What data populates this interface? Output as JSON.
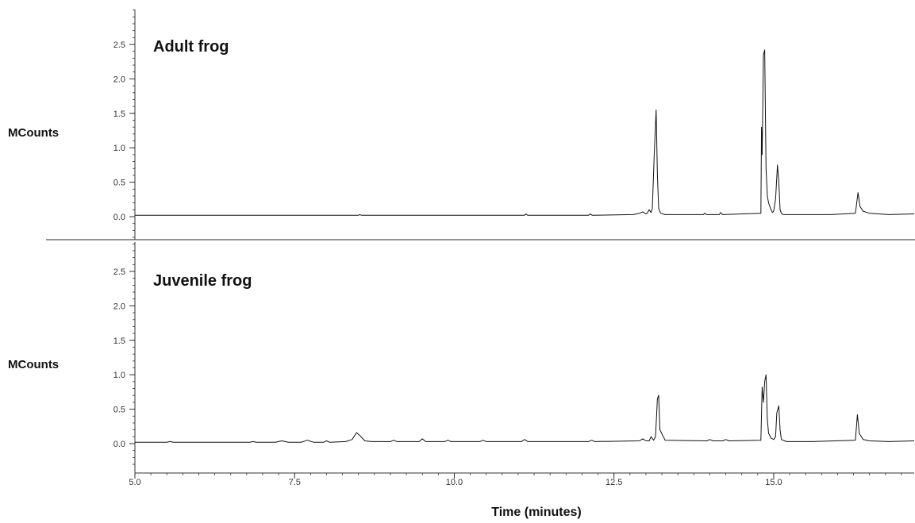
{
  "chart_data": {
    "type": "line",
    "xlabel": "Time (minutes)",
    "xlim": [
      5.0,
      17.2
    ],
    "xticks": [
      "5.0",
      "7.5",
      "10.0",
      "12.5",
      "15.0"
    ],
    "xtick_values": [
      5.0,
      7.5,
      10.0,
      12.5,
      15.0
    ],
    "line_color": "#111111",
    "panels": [
      {
        "title": "Adult frog",
        "ylabel": "MCounts",
        "ylim": [
          -0.3,
          3.0
        ],
        "yticks": [
          "0.0",
          "0.5",
          "1.0",
          "1.5",
          "2.0",
          "2.5"
        ],
        "ytick_values": [
          0.0,
          0.5,
          1.0,
          1.5,
          2.0,
          2.5
        ],
        "x": [
          5.0,
          8.5,
          8.52,
          8.55,
          11.1,
          11.12,
          11.15,
          12.1,
          12.13,
          12.16,
          12.8,
          12.9,
          12.95,
          13.0,
          13.02,
          13.05,
          13.08,
          13.1,
          13.13,
          13.16,
          13.18,
          13.2,
          13.23,
          13.3,
          13.9,
          13.92,
          13.95,
          14.15,
          14.17,
          14.2,
          14.8,
          14.81,
          14.82,
          14.84,
          14.86,
          14.88,
          14.9,
          14.92,
          14.95,
          14.98,
          15.0,
          15.03,
          15.06,
          15.08,
          15.1,
          15.12,
          15.15,
          15.5,
          15.9,
          16.28,
          16.32,
          16.35,
          16.4,
          16.5,
          16.8,
          17.2
        ],
        "y": [
          0.02,
          0.02,
          0.03,
          0.02,
          0.02,
          0.04,
          0.02,
          0.02,
          0.04,
          0.02,
          0.03,
          0.05,
          0.07,
          0.04,
          0.05,
          0.1,
          0.06,
          0.12,
          0.9,
          1.55,
          0.6,
          0.12,
          0.05,
          0.03,
          0.03,
          0.05,
          0.03,
          0.03,
          0.06,
          0.03,
          0.05,
          1.3,
          0.9,
          2.35,
          2.42,
          0.7,
          0.3,
          0.2,
          0.12,
          0.06,
          0.08,
          0.25,
          0.75,
          0.5,
          0.1,
          0.05,
          0.03,
          0.03,
          0.03,
          0.05,
          0.35,
          0.15,
          0.08,
          0.05,
          0.03,
          0.04
        ]
      },
      {
        "title": "Juvenile frog",
        "ylabel": "MCounts",
        "ylim": [
          -0.3,
          3.0
        ],
        "yticks": [
          "0.0",
          "0.5",
          "1.0",
          "1.5",
          "2.0",
          "2.5"
        ],
        "ytick_values": [
          0.0,
          0.5,
          1.0,
          1.5,
          2.0,
          2.5
        ],
        "x": [
          5.0,
          5.5,
          5.55,
          5.6,
          6.8,
          6.85,
          6.9,
          7.2,
          7.3,
          7.4,
          7.6,
          7.7,
          7.8,
          7.95,
          8.0,
          8.05,
          8.3,
          8.4,
          8.47,
          8.52,
          8.6,
          8.7,
          9.0,
          9.05,
          9.1,
          9.45,
          9.5,
          9.55,
          9.85,
          9.9,
          9.95,
          10.4,
          10.45,
          10.5,
          11.05,
          11.1,
          11.15,
          12.1,
          12.15,
          12.2,
          12.9,
          12.95,
          13.0,
          13.05,
          13.08,
          13.12,
          13.15,
          13.18,
          13.2,
          13.22,
          13.3,
          13.95,
          14.0,
          14.05,
          14.2,
          14.25,
          14.3,
          14.8,
          14.82,
          14.84,
          14.86,
          14.88,
          14.9,
          14.92,
          14.96,
          15.0,
          15.03,
          15.05,
          15.08,
          15.1,
          15.12,
          15.2,
          15.6,
          16.28,
          16.31,
          16.34,
          16.4,
          16.5,
          16.8,
          17.2
        ],
        "y": [
          0.02,
          0.02,
          0.03,
          0.02,
          0.02,
          0.03,
          0.02,
          0.02,
          0.04,
          0.02,
          0.02,
          0.05,
          0.02,
          0.02,
          0.04,
          0.02,
          0.03,
          0.06,
          0.16,
          0.12,
          0.04,
          0.03,
          0.03,
          0.05,
          0.03,
          0.03,
          0.07,
          0.03,
          0.03,
          0.05,
          0.03,
          0.03,
          0.05,
          0.03,
          0.03,
          0.06,
          0.03,
          0.03,
          0.05,
          0.03,
          0.04,
          0.07,
          0.04,
          0.04,
          0.1,
          0.05,
          0.1,
          0.65,
          0.7,
          0.2,
          0.05,
          0.04,
          0.06,
          0.04,
          0.04,
          0.06,
          0.04,
          0.05,
          0.82,
          0.6,
          0.9,
          1.0,
          0.35,
          0.15,
          0.08,
          0.06,
          0.1,
          0.45,
          0.55,
          0.2,
          0.06,
          0.03,
          0.03,
          0.05,
          0.42,
          0.15,
          0.06,
          0.04,
          0.03,
          0.04
        ]
      }
    ]
  }
}
